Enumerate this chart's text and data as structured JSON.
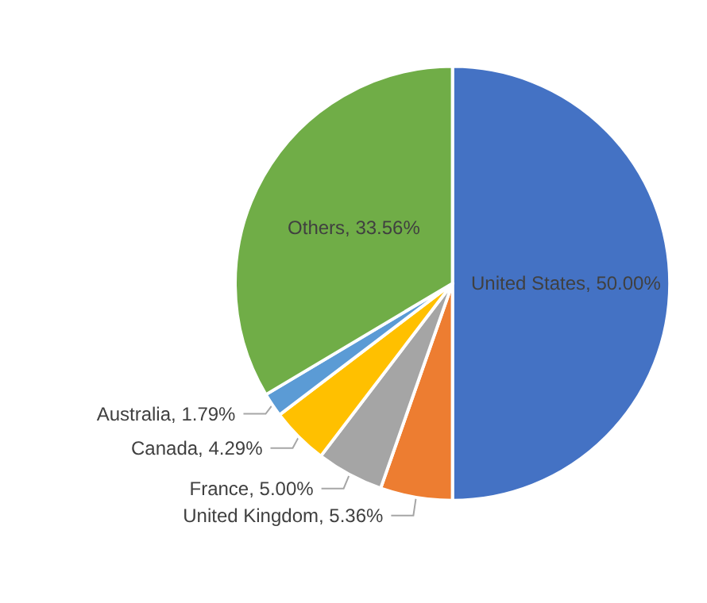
{
  "chart_data": {
    "type": "pie",
    "categories": [
      "United States",
      "United Kingdom",
      "France",
      "Canada",
      "Australia",
      "Others"
    ],
    "values": [
      50.0,
      5.36,
      5.0,
      4.29,
      1.79,
      33.56
    ],
    "colors": [
      "#4472c4",
      "#ed7d31",
      "#a5a5a5",
      "#ffc000",
      "#5b9bd5",
      "#70ad47"
    ],
    "value_labels": [
      "50.00%",
      "5.36%",
      "5.00%",
      "4.29%",
      "1.79%",
      "33.56%"
    ],
    "legend": false
  }
}
